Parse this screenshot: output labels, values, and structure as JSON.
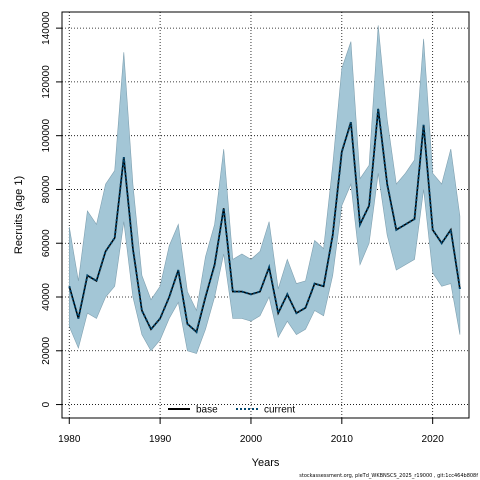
{
  "chart_data": {
    "type": "line",
    "title": "",
    "xlabel": "Years",
    "ylabel": "Recruits (age 1)",
    "xlim": [
      1979.2,
      2024.0
    ],
    "ylim": [
      -5000,
      146000
    ],
    "grid": true,
    "x_ticks": [
      1980,
      1990,
      2000,
      2010,
      2020
    ],
    "y_ticks": [
      0,
      20000,
      40000,
      60000,
      80000,
      100000,
      120000,
      140000
    ],
    "legend": {
      "placement": "bottom-center",
      "entries": [
        "base",
        "current"
      ]
    },
    "x": [
      1980,
      1981,
      1982,
      1983,
      1984,
      1985,
      1986,
      1987,
      1988,
      1989,
      1990,
      1991,
      1992,
      1993,
      1994,
      1995,
      1996,
      1997,
      1998,
      1999,
      2000,
      2001,
      2002,
      2003,
      2004,
      2005,
      2006,
      2007,
      2008,
      2009,
      2010,
      2011,
      2012,
      2013,
      2014,
      2015,
      2016,
      2017,
      2018,
      2019,
      2020,
      2021,
      2022,
      2023
    ],
    "series": [
      {
        "name": "base",
        "color": "#000000",
        "style": "solid",
        "values": [
          44000,
          32000,
          48000,
          46000,
          57000,
          62000,
          92000,
          58000,
          35000,
          28000,
          32000,
          40000,
          50000,
          30000,
          27000,
          40000,
          52000,
          73000,
          42000,
          42000,
          41000,
          42000,
          51000,
          34000,
          41000,
          34000,
          36000,
          45000,
          44000,
          63000,
          94000,
          105000,
          67000,
          74000,
          110000,
          82000,
          65000,
          67000,
          69000,
          104000,
          65000,
          60000,
          65000,
          43000
        ]
      },
      {
        "name": "current",
        "color": "#00466e",
        "style": "dotted",
        "values": [
          44000,
          32000,
          48000,
          46000,
          57000,
          62000,
          92000,
          58000,
          35000,
          28000,
          32000,
          40000,
          50000,
          30000,
          27000,
          40000,
          52000,
          73000,
          42000,
          42000,
          41000,
          42000,
          51000,
          34000,
          41000,
          34000,
          36000,
          45000,
          44000,
          63000,
          94000,
          105000,
          67000,
          74000,
          110000,
          82000,
          65000,
          67000,
          69000,
          104000,
          65000,
          60000,
          65000,
          43000
        ]
      }
    ],
    "interval": {
      "color": "#a3c6d6",
      "upper": [
        66000,
        46000,
        72000,
        67000,
        82000,
        87000,
        131000,
        82000,
        48000,
        39000,
        44000,
        59000,
        67000,
        42000,
        35000,
        55000,
        67000,
        95000,
        54000,
        56000,
        54000,
        57000,
        68000,
        43000,
        54000,
        45000,
        46000,
        61000,
        58000,
        89000,
        125000,
        135000,
        84000,
        89000,
        141000,
        106000,
        82000,
        86000,
        91000,
        136000,
        86000,
        82000,
        95000,
        70000
      ],
      "lower": [
        29000,
        21000,
        34000,
        32000,
        40000,
        44000,
        68000,
        40000,
        26000,
        20000,
        24000,
        32000,
        38000,
        20000,
        19000,
        28000,
        40000,
        56000,
        32000,
        32000,
        31000,
        33000,
        40000,
        25000,
        31000,
        26000,
        28000,
        35000,
        33000,
        48000,
        74000,
        82000,
        52000,
        60000,
        86000,
        63000,
        50000,
        52000,
        54000,
        80000,
        49000,
        44000,
        45000,
        26000
      ]
    }
  },
  "caption": "stockassessment.org, pleTd_WKBNSCS_2025_r19000 , git:1cc464b808f"
}
